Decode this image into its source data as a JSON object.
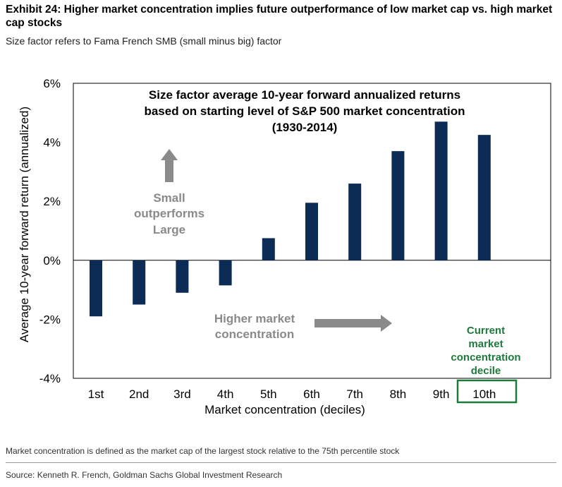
{
  "header": {
    "title": "Exhibit 24: Higher market concentration implies future outperformance of low market cap vs. high market cap stocks",
    "subtitle": "Size factor refers to Fama French SMB (small minus big) factor"
  },
  "chart_data": {
    "type": "bar",
    "title_lines": [
      "Size factor average 10-year forward annualized returns",
      "based on starting level of S&P 500 market concentration",
      "(1930-2014)"
    ],
    "categories": [
      "1st",
      "2nd",
      "3rd",
      "4th",
      "5th",
      "6th",
      "7th",
      "8th",
      "9th",
      "10th"
    ],
    "values": [
      -1.9,
      -1.5,
      -1.1,
      -0.85,
      0.75,
      1.95,
      2.6,
      3.7,
      4.7,
      4.25
    ],
    "xlabel": "Market concentration (deciles)",
    "ylabel": "Average 10-year forward return (annualized)",
    "ylim": [
      -4,
      6
    ],
    "yticks": [
      6,
      4,
      2,
      0,
      -2,
      -4
    ],
    "ytick_labels": [
      "6%",
      "4%",
      "2%",
      "0%",
      "-2%",
      "-4%"
    ],
    "grid": false,
    "bar_color": "#0c2b55",
    "highlight_category": "10th",
    "highlight_color": "#1e7a3c",
    "annotations": {
      "small_outperforms": [
        "Small",
        "outperforms",
        "Large"
      ],
      "higher_concentration": [
        "Higher market",
        "concentration"
      ],
      "current_decile": [
        "Current",
        "market",
        "concentration",
        "decile"
      ],
      "annotation_color": "#8a8a8a"
    }
  },
  "footer": {
    "note": "Market concentration is defined as the market cap of the largest stock relative to the 75th percentile stock",
    "source": "Source: Kenneth R. French, Goldman Sachs Global Investment Research"
  }
}
